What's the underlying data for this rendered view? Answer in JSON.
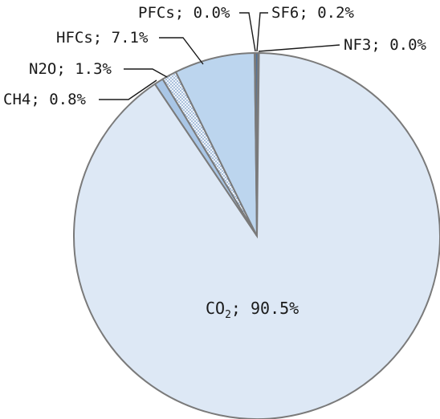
{
  "chart_data": {
    "type": "pie",
    "slices": [
      {
        "name": "CO2",
        "value": 90.5,
        "label": "CO₂; 90.5%",
        "color": "#dde8f5"
      },
      {
        "name": "CH4",
        "value": 0.8,
        "label": "CH4; 0.8%",
        "color": "#a9c6e6"
      },
      {
        "name": "N2O",
        "value": 1.3,
        "label": "N2O; 1.3%",
        "color": "#e4eef8",
        "pattern": "dotted"
      },
      {
        "name": "HFCs",
        "value": 7.1,
        "label": "HFCs; 7.1%",
        "color": "#bcd5ee"
      },
      {
        "name": "PFCs",
        "value": 0.0,
        "label": "PFCs; 0.0%",
        "color": "#5f8fc4"
      },
      {
        "name": "SF6",
        "value": 0.2,
        "label": "SF6; 0.2%",
        "color": "#3d6fa8"
      },
      {
        "name": "NF3",
        "value": 0.0,
        "label": "NF3; 0.0%",
        "color": "#244f86"
      }
    ],
    "start_angle": "12 o'clock",
    "direction": "clockwise"
  },
  "labels": {
    "co2": "CO",
    "co2_sub": "2",
    "co2_rest": "; 90.5%",
    "ch4": "CH4; 0.8%",
    "n2o": "N2O; 1.3%",
    "hfcs": "HFCs; 7.1%",
    "pfcs": "PFCs; 0.0%",
    "sf6": "SF6; 0.2%",
    "nf3": "NF3; 0.0%"
  }
}
